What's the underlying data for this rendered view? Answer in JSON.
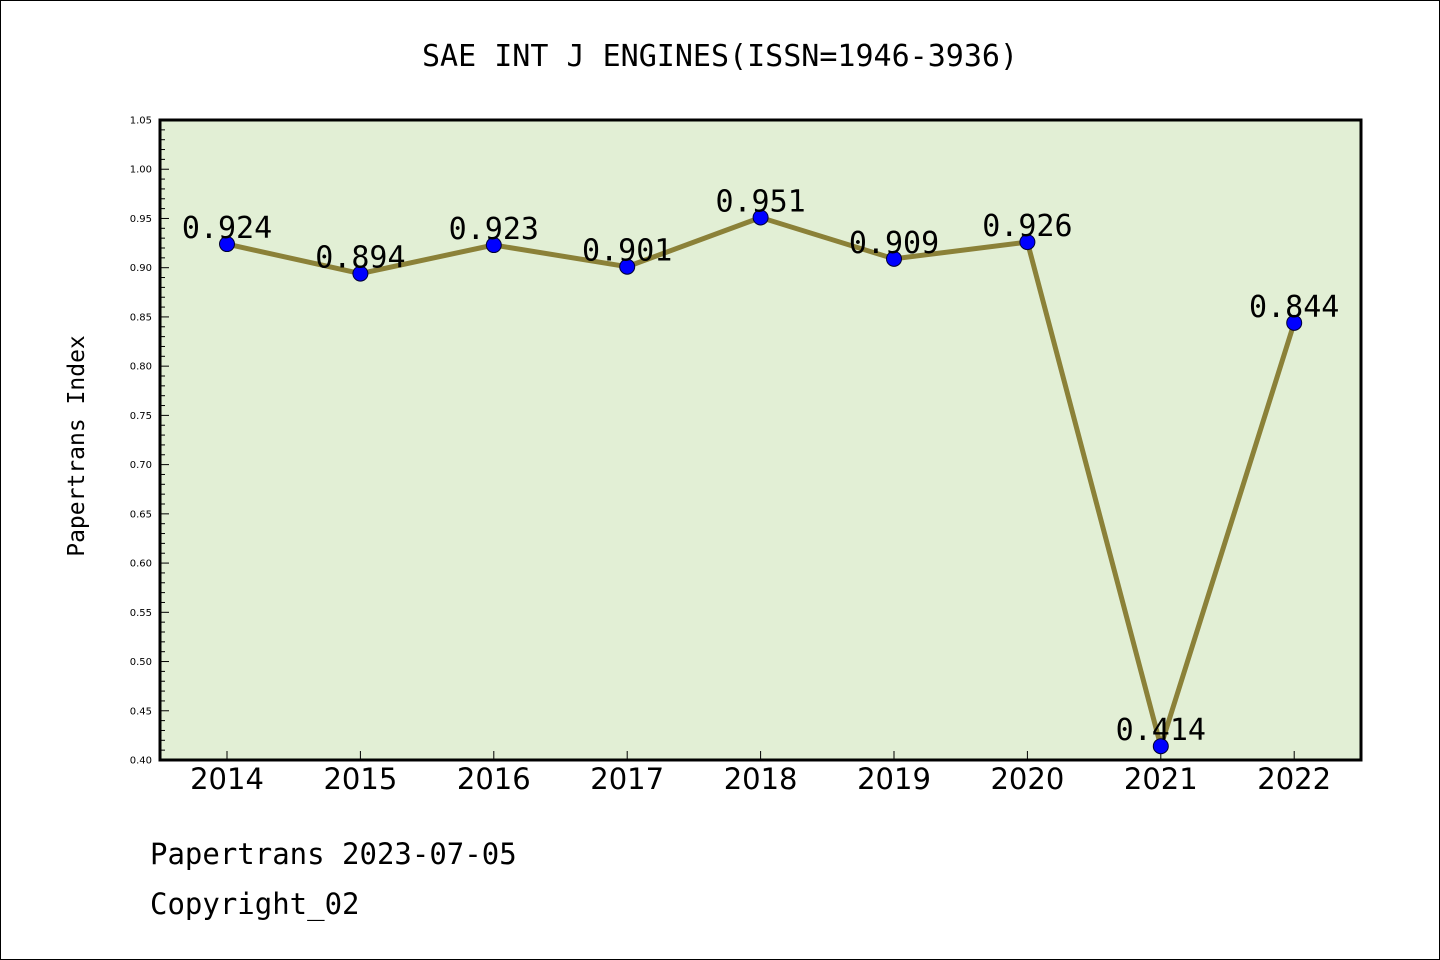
{
  "chart_data": {
    "type": "line",
    "title": "SAE INT J ENGINES(ISSN=1946-3936)",
    "ylabel": "Papertrans Index",
    "xlabel": "",
    "categories": [
      "2014",
      "2015",
      "2016",
      "2017",
      "2018",
      "2019",
      "2020",
      "2021",
      "2022"
    ],
    "values": [
      0.924,
      0.894,
      0.923,
      0.901,
      0.951,
      0.909,
      0.926,
      0.414,
      0.844
    ],
    "data_labels": [
      "0.924",
      "0.894",
      "0.923",
      "0.901",
      "0.951",
      "0.909",
      "0.926",
      "0.414",
      "0.844"
    ],
    "ylim": [
      0.4,
      1.05
    ],
    "yticks": [
      "0.40",
      "0.45",
      "0.50",
      "0.55",
      "0.60",
      "0.65",
      "0.70",
      "0.75",
      "0.80",
      "0.85",
      "0.90",
      "0.95",
      "1.00",
      "1.05"
    ],
    "grid": false,
    "colors": {
      "plot_background": "#e2efd5",
      "line": "#8b8138",
      "marker": "#0000ff"
    }
  },
  "footer": {
    "line1": "Papertrans 2023-07-05",
    "line2": "Copyright_02"
  }
}
